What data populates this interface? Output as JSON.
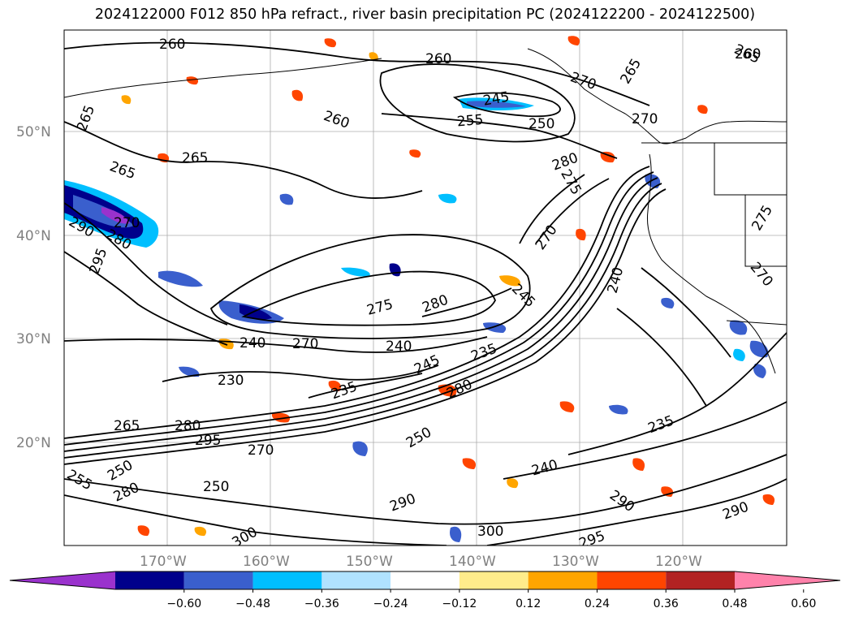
{
  "title": "2024122000 F012 850 hPa refract., river basin precipitation PC (2024122200 - 2024122500)",
  "lat_labels": [
    "50°N",
    "40°N",
    "30°N",
    "20°N"
  ],
  "lon_labels": [
    "170°W",
    "160°W",
    "150°W",
    "140°W",
    "130°W",
    "120°W"
  ],
  "colorbar": {
    "ticks": [
      "−0.60",
      "−0.48",
      "−0.36",
      "−0.24",
      "−0.12",
      "0.12",
      "0.24",
      "0.36",
      "0.48",
      "0.60"
    ],
    "colors": [
      "#9a32cd",
      "#00008b",
      "#3a5fcd",
      "#00bfff",
      "#b0e2ff",
      "#ffffff",
      "#ffec8b",
      "#ffa500",
      "#ff4500",
      "#b22222",
      "#ff82ab"
    ]
  },
  "contour_labels": [
    "260",
    "260",
    "265",
    "265",
    "270",
    "265",
    "265",
    "245",
    "255",
    "250",
    "260",
    "260",
    "265",
    "270",
    "270",
    "270",
    "275",
    "280",
    "270",
    "295",
    "280",
    "290",
    "275",
    "280",
    "245",
    "240",
    "240",
    "275",
    "270",
    "240",
    "230",
    "235",
    "245",
    "235",
    "265",
    "280",
    "295",
    "270",
    "255",
    "250",
    "280",
    "250",
    "290",
    "300",
    "295",
    "290",
    "290",
    "235",
    "240",
    "250",
    "280",
    "300"
  ]
}
